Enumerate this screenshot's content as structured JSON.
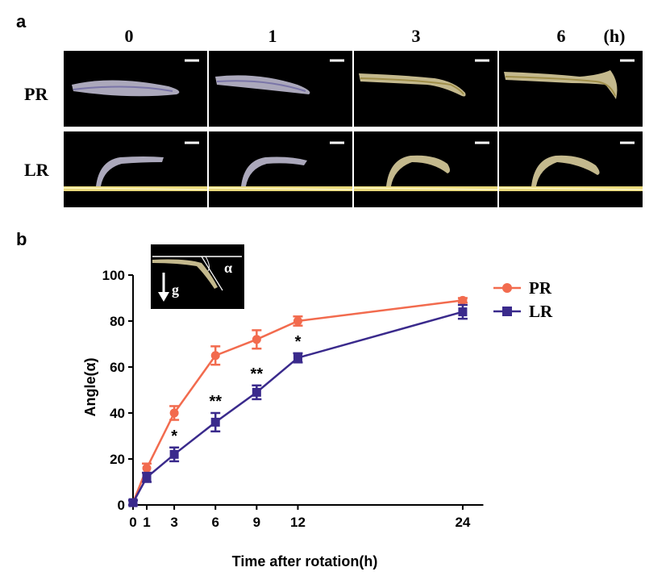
{
  "panel_a": {
    "label": "a",
    "time_points": [
      "0",
      "1",
      "3",
      "6"
    ],
    "time_unit": "(h)",
    "rows": [
      "PR",
      "LR"
    ]
  },
  "panel_b": {
    "label": "b",
    "inset": {
      "gravity_label": "g",
      "angle_label": "α"
    }
  },
  "chart_data": {
    "type": "line",
    "xlabel": "Time after rotation(h)",
    "ylabel": "Angle(α)",
    "xlim": [
      0,
      26
    ],
    "ylim": [
      0,
      100
    ],
    "x_ticks": [
      0,
      1,
      3,
      6,
      9,
      12,
      24
    ],
    "y_ticks": [
      0,
      20,
      40,
      60,
      80,
      100
    ],
    "x": [
      0,
      1,
      3,
      6,
      9,
      12,
      24
    ],
    "series": [
      {
        "name": "PR",
        "color": "#f26b4e",
        "marker": "circle",
        "values": [
          1,
          16,
          40,
          65,
          72,
          80,
          89
        ],
        "errors": [
          1,
          2,
          3,
          4,
          4,
          2,
          1
        ]
      },
      {
        "name": "LR",
        "color": "#3a2a8c",
        "marker": "square",
        "values": [
          1,
          12,
          22,
          36,
          49,
          64,
          84
        ],
        "errors": [
          1,
          2,
          3,
          4,
          3,
          2,
          3
        ]
      }
    ],
    "significance": [
      {
        "x": 3,
        "label": "*"
      },
      {
        "x": 6,
        "label": "**"
      },
      {
        "x": 9,
        "label": "**"
      },
      {
        "x": 12,
        "label": "*"
      }
    ],
    "legend_position": "top-right"
  }
}
